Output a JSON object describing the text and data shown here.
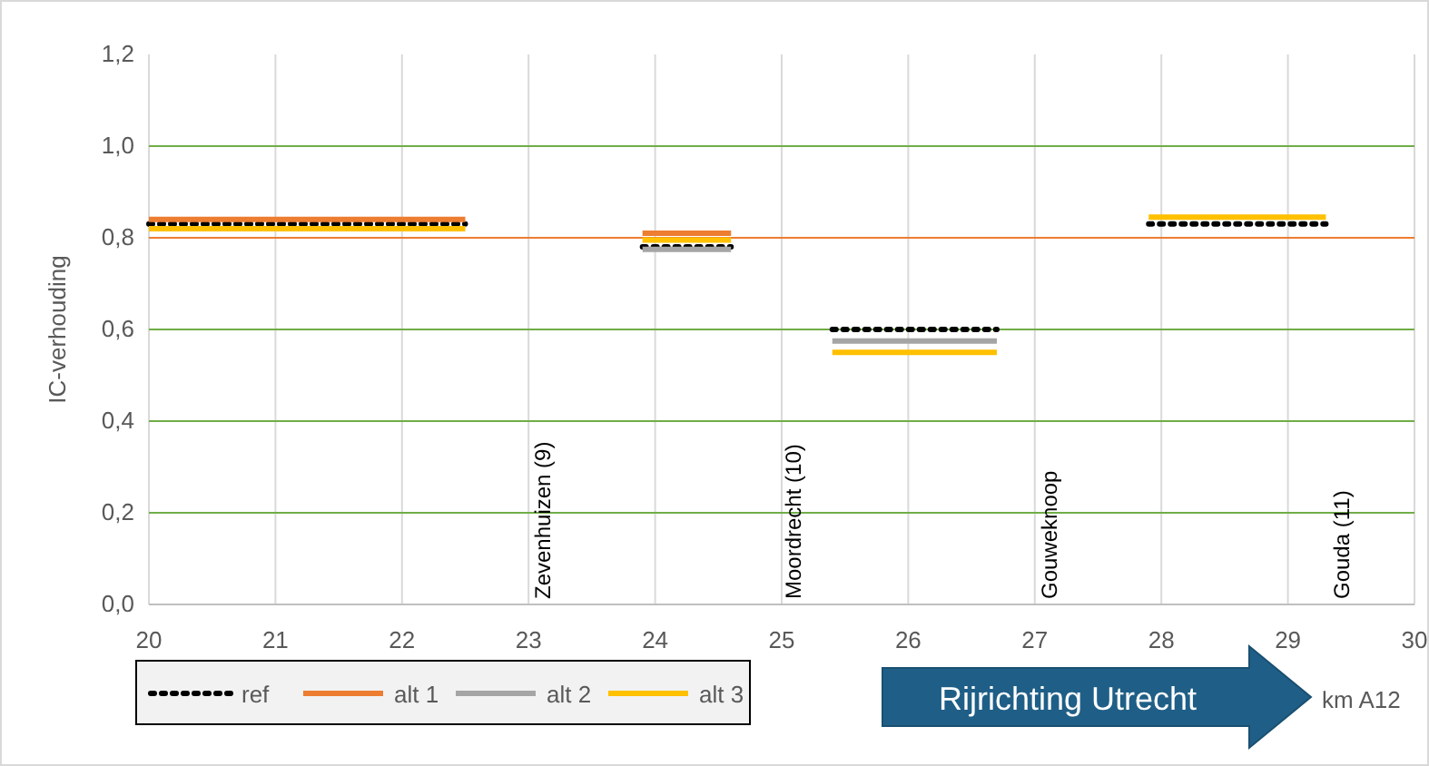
{
  "chart_data": {
    "type": "line",
    "ylabel": "IC-verhouding",
    "xlabel": "km A12",
    "xlim": [
      20,
      30
    ],
    "xticks": [
      20,
      21,
      22,
      23,
      24,
      25,
      26,
      27,
      28,
      29,
      30
    ],
    "ylim": [
      0,
      1.2
    ],
    "yticks": [
      {
        "value": 0,
        "label": "0,0"
      },
      {
        "value": 0.2,
        "label": "0,2"
      },
      {
        "value": 0.4,
        "label": "0,4"
      },
      {
        "value": 0.6,
        "label": "0,6"
      },
      {
        "value": 0.8,
        "label": "0,8"
      },
      {
        "value": 1,
        "label": "1,0"
      },
      {
        "value": 1.2,
        "label": "1,2"
      }
    ],
    "grid": "x",
    "legend": "bottom left",
    "x": [
      20,
      22.5,
      23.2,
      23.9,
      24.6,
      25,
      25.4,
      26.7,
      27.3,
      27.9,
      29.3
    ],
    "series": [
      {
        "name": "ref",
        "color": "#000000",
        "line_style": "dotted",
        "values": [
          0.83,
          0.83,
          null,
          0.78,
          0.78,
          null,
          0.6,
          0.6,
          null,
          0.83,
          0.83
        ]
      },
      {
        "name": "alt 1",
        "color": "#ed7d31",
        "values": [
          0.84,
          0.84,
          null,
          0.81,
          0.81,
          null,
          null,
          null,
          null,
          null,
          null
        ]
      },
      {
        "name": "alt 2",
        "color": "#a5a5a5",
        "values": [
          null,
          null,
          null,
          0.775,
          0.775,
          null,
          0.575,
          0.575,
          null,
          null,
          null
        ]
      },
      {
        "name": "alt 3",
        "color": "#ffc000",
        "values": [
          0.82,
          0.82,
          null,
          0.795,
          0.795,
          null,
          0.55,
          0.55,
          null,
          0.845,
          0.845
        ]
      }
    ],
    "ref_lines": [
      {
        "axis": "y",
        "value": 0.2,
        "color": "#70ad47"
      },
      {
        "axis": "y",
        "value": 0.4,
        "color": "#70ad47"
      },
      {
        "axis": "y",
        "value": 0.6,
        "color": "#70ad47"
      },
      {
        "axis": "y",
        "value": 0.8,
        "color": "#ed7d31"
      },
      {
        "axis": "y",
        "value": 1,
        "color": "#70ad47"
      }
    ],
    "annotations": [
      "Zevenhuizen (9)",
      "Moordrecht (10)",
      "Gouweknoop",
      "Gouda (11)",
      "Rijrichting Utrecht"
    ]
  }
}
